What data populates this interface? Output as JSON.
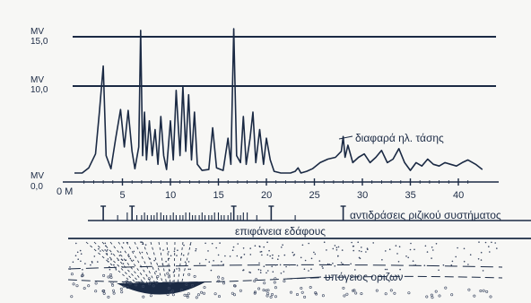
{
  "axis": {
    "y_labels": [
      {
        "unit": "MV",
        "value": "15,0",
        "mv": 15
      },
      {
        "unit": "MV",
        "value": "10,0",
        "mv": 10
      },
      {
        "unit": "MV",
        "value": "0,0",
        "mv": 0
      }
    ],
    "x_origin_label": "0 M",
    "x_ticks": [
      "5",
      "10",
      "15",
      "20",
      "25",
      "30",
      "35",
      "40"
    ],
    "x_tick_values": [
      5,
      10,
      15,
      20,
      25,
      30,
      35,
      40
    ]
  },
  "annotations": {
    "voltage_difference": "διαφαρά ηλ. τάσης",
    "root_reactions": "αντιδράσεις ριζικού συστήματος",
    "soil_surface": "επιφάνεια εδάφους",
    "underground_horizons": "υπόγειος οριζων"
  },
  "colors": {
    "ink": "#1b2a44",
    "paper": "#f7f7f5",
    "soil_dots": "#3a4660"
  }
}
